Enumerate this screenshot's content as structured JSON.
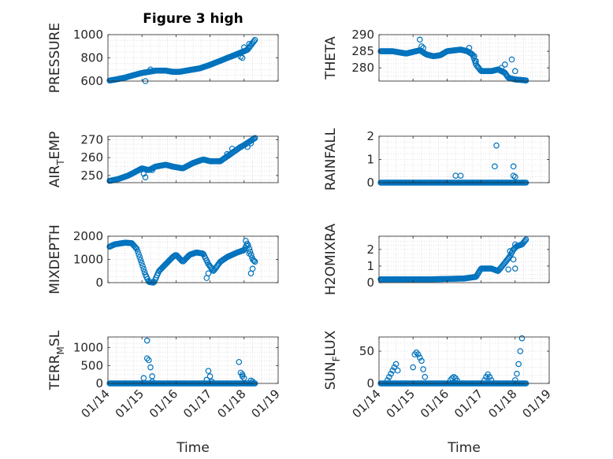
{
  "figure_title": "Figure 3 high",
  "time_axis": {
    "xlabel": "Time",
    "xlim": [
      14,
      19
    ],
    "ticks": [
      14,
      15,
      16,
      17,
      18,
      19
    ],
    "tick_labels": [
      "01/14",
      "01/15",
      "01/16",
      "01/17",
      "01/18",
      "01/19"
    ]
  },
  "colors": {
    "marker": "#0072BD",
    "grid": "#d9d9d9",
    "axis": "#262626"
  },
  "chart_data": [
    {
      "id": "pressure",
      "type": "scatter",
      "ylabel": "PRESSURE",
      "ylim": [
        600,
        1000
      ],
      "yticks": [
        600,
        800,
        1000
      ],
      "data_window": [
        14.0,
        18.35
      ],
      "x_range": [
        14.05,
        18.32
      ],
      "keypoints": [
        [
          14.05,
          605
        ],
        [
          14.2,
          612
        ],
        [
          14.5,
          630
        ],
        [
          14.8,
          655
        ],
        [
          15.0,
          670
        ],
        [
          15.2,
          680
        ],
        [
          15.4,
          690
        ],
        [
          15.7,
          690
        ],
        [
          15.9,
          680
        ],
        [
          16.1,
          680
        ],
        [
          16.4,
          695
        ],
        [
          16.7,
          710
        ],
        [
          17.0,
          740
        ],
        [
          17.3,
          775
        ],
        [
          17.6,
          810
        ],
        [
          17.9,
          845
        ],
        [
          18.1,
          870
        ],
        [
          18.32,
          955
        ]
      ],
      "outliers": [
        [
          15.1,
          600
        ],
        [
          15.25,
          700
        ],
        [
          17.9,
          810
        ],
        [
          17.95,
          800
        ],
        [
          18.0,
          890
        ],
        [
          18.15,
          920
        ]
      ]
    },
    {
      "id": "theta",
      "type": "scatter",
      "ylabel": "THETA",
      "ylim": [
        276,
        290
      ],
      "yticks": [
        280,
        285,
        290
      ],
      "data_window": [
        14.0,
        18.35
      ],
      "x_range": [
        14.05,
        18.32
      ],
      "keypoints": [
        [
          14.05,
          285
        ],
        [
          14.4,
          285
        ],
        [
          14.8,
          284.3
        ],
        [
          15.0,
          284.8
        ],
        [
          15.2,
          285.3
        ],
        [
          15.4,
          284
        ],
        [
          15.6,
          283.5
        ],
        [
          15.8,
          283.8
        ],
        [
          16.0,
          285
        ],
        [
          16.4,
          285.5
        ],
        [
          16.6,
          285
        ],
        [
          16.75,
          284
        ],
        [
          16.85,
          281
        ],
        [
          17.0,
          279
        ],
        [
          17.3,
          279
        ],
        [
          17.5,
          279.5
        ],
        [
          17.7,
          278.5
        ],
        [
          17.8,
          277
        ],
        [
          18.0,
          276.5
        ],
        [
          18.32,
          276.2
        ]
      ],
      "outliers": [
        [
          15.2,
          288.5
        ],
        [
          15.25,
          286.5
        ],
        [
          15.3,
          286
        ],
        [
          16.65,
          286
        ],
        [
          16.8,
          283.5
        ],
        [
          16.85,
          282
        ],
        [
          17.6,
          280
        ],
        [
          17.7,
          281
        ],
        [
          17.9,
          282.5
        ],
        [
          18.0,
          279
        ]
      ]
    },
    {
      "id": "air_temp",
      "type": "scatter",
      "ylabel": "AIR_TEMP",
      "ylabel_main": "AIR",
      "ylabel_sub": "T",
      "ylabel_tail": "EMP",
      "ylim": [
        246,
        272
      ],
      "yticks": [
        250,
        260,
        270
      ],
      "data_window": [
        14.0,
        18.35
      ],
      "x_range": [
        14.05,
        18.32
      ],
      "keypoints": [
        [
          14.05,
          247
        ],
        [
          14.3,
          248
        ],
        [
          14.6,
          250
        ],
        [
          14.8,
          252
        ],
        [
          15.0,
          254
        ],
        [
          15.2,
          253
        ],
        [
          15.4,
          255
        ],
        [
          15.7,
          256
        ],
        [
          15.9,
          255
        ],
        [
          16.2,
          254
        ],
        [
          16.5,
          257
        ],
        [
          16.8,
          259
        ],
        [
          17.0,
          258
        ],
        [
          17.3,
          258
        ],
        [
          17.6,
          262
        ],
        [
          17.9,
          266
        ],
        [
          18.0,
          267
        ],
        [
          18.32,
          271
        ]
      ],
      "outliers": [
        [
          15.05,
          251
        ],
        [
          15.1,
          249
        ],
        [
          15.3,
          253
        ],
        [
          17.5,
          262
        ],
        [
          17.65,
          265
        ],
        [
          18.1,
          266
        ],
        [
          18.2,
          268
        ]
      ]
    },
    {
      "id": "rainfall",
      "type": "scatter",
      "ylabel": "RAINFALL",
      "ylim": [
        0,
        2
      ],
      "yticks": [
        0,
        1,
        2
      ],
      "data_window": [
        14.0,
        18.35
      ],
      "x_range": [
        14.05,
        18.32
      ],
      "keypoints": [
        [
          14.05,
          0
        ],
        [
          18.32,
          0
        ]
      ],
      "outliers": [
        [
          16.25,
          0.3
        ],
        [
          16.4,
          0.3
        ],
        [
          17.4,
          0.7
        ],
        [
          17.45,
          1.6
        ],
        [
          17.95,
          0.7
        ],
        [
          17.95,
          0.3
        ],
        [
          18.0,
          0.25
        ]
      ]
    },
    {
      "id": "mixdepth",
      "type": "scatter",
      "ylabel": "MIXDEPTH",
      "ylim": [
        0,
        2000
      ],
      "yticks": [
        0,
        1000,
        2000
      ],
      "data_window": [
        14.0,
        18.35
      ],
      "x_range": [
        14.05,
        18.32
      ],
      "keypoints": [
        [
          14.05,
          1550
        ],
        [
          14.2,
          1650
        ],
        [
          14.5,
          1720
        ],
        [
          14.7,
          1700
        ],
        [
          14.85,
          1450
        ],
        [
          15.0,
          800
        ],
        [
          15.1,
          350
        ],
        [
          15.2,
          30
        ],
        [
          15.35,
          0
        ],
        [
          15.5,
          500
        ],
        [
          15.7,
          800
        ],
        [
          15.9,
          1100
        ],
        [
          16.0,
          1200
        ],
        [
          16.2,
          900
        ],
        [
          16.4,
          1200
        ],
        [
          16.6,
          1300
        ],
        [
          16.8,
          1250
        ],
        [
          16.95,
          800
        ],
        [
          17.1,
          500
        ],
        [
          17.3,
          900
        ],
        [
          17.5,
          1100
        ],
        [
          17.8,
          1300
        ],
        [
          18.0,
          1400
        ],
        [
          18.1,
          1700
        ],
        [
          18.25,
          1000
        ],
        [
          18.32,
          900
        ]
      ],
      "outliers": [
        [
          16.9,
          200
        ],
        [
          16.95,
          400
        ],
        [
          18.05,
          1800
        ],
        [
          18.15,
          1250
        ],
        [
          18.2,
          400
        ],
        [
          18.25,
          600
        ]
      ]
    },
    {
      "id": "h2omixra",
      "type": "scatter",
      "ylabel": "H2OMIXRA",
      "ylim": [
        0,
        2.8
      ],
      "yticks": [
        0,
        1,
        2
      ],
      "data_window": [
        14.0,
        18.35
      ],
      "x_range": [
        14.05,
        18.32
      ],
      "keypoints": [
        [
          14.05,
          0.2
        ],
        [
          15.5,
          0.2
        ],
        [
          16.5,
          0.25
        ],
        [
          16.85,
          0.35
        ],
        [
          17.0,
          0.85
        ],
        [
          17.3,
          0.85
        ],
        [
          17.5,
          0.7
        ],
        [
          17.7,
          1.2
        ],
        [
          17.85,
          1.6
        ],
        [
          17.95,
          2.0
        ],
        [
          18.05,
          2.2
        ],
        [
          18.2,
          2.3
        ],
        [
          18.32,
          2.6
        ]
      ],
      "outliers": [
        [
          17.8,
          0.8
        ],
        [
          17.85,
          1.9
        ],
        [
          17.95,
          1.4
        ],
        [
          18.0,
          0.85
        ],
        [
          18.0,
          2.3
        ]
      ]
    },
    {
      "id": "terr_msl",
      "type": "scatter",
      "ylabel": "TERR_MSL",
      "ylabel_main": "TERR",
      "ylabel_sub": "M",
      "ylabel_tail": "SL",
      "ylim": [
        0,
        1300
      ],
      "yticks": [
        0,
        500,
        1000
      ],
      "data_window": [
        14.0,
        18.35
      ],
      "x_range": [
        14.05,
        18.32
      ],
      "keypoints": [
        [
          14.05,
          0
        ],
        [
          18.32,
          0
        ]
      ],
      "outliers": [
        [
          15.05,
          150
        ],
        [
          15.15,
          1200
        ],
        [
          15.15,
          700
        ],
        [
          15.2,
          650
        ],
        [
          15.25,
          450
        ],
        [
          15.3,
          200
        ],
        [
          15.3,
          50
        ],
        [
          16.9,
          100
        ],
        [
          16.95,
          350
        ],
        [
          17.0,
          200
        ],
        [
          17.05,
          50
        ],
        [
          17.85,
          600
        ],
        [
          17.9,
          300
        ],
        [
          17.95,
          250
        ],
        [
          17.95,
          200
        ],
        [
          18.0,
          150
        ],
        [
          18.2,
          80
        ],
        [
          18.25,
          50
        ]
      ]
    },
    {
      "id": "sun_flux",
      "type": "scatter",
      "ylabel": "SUN_FLUX",
      "ylabel_main": "SUN",
      "ylabel_sub": "F",
      "ylabel_tail": "LUX",
      "ylim": [
        0,
        72
      ],
      "yticks": [
        0,
        50
      ],
      "data_window": [
        14.0,
        18.35
      ],
      "x_range": [
        14.05,
        18.32
      ],
      "keypoints": [
        [
          14.05,
          0
        ],
        [
          18.32,
          0
        ]
      ],
      "outliers": [
        [
          14.2,
          0
        ],
        [
          14.25,
          5
        ],
        [
          14.3,
          10
        ],
        [
          14.35,
          15
        ],
        [
          14.4,
          20
        ],
        [
          14.45,
          25
        ],
        [
          14.5,
          30
        ],
        [
          14.55,
          20
        ],
        [
          15.0,
          25
        ],
        [
          15.05,
          45
        ],
        [
          15.1,
          48
        ],
        [
          15.15,
          45
        ],
        [
          15.2,
          40
        ],
        [
          15.25,
          35
        ],
        [
          15.3,
          22
        ],
        [
          15.35,
          10
        ],
        [
          16.1,
          5
        ],
        [
          16.15,
          8
        ],
        [
          16.2,
          10
        ],
        [
          16.25,
          8
        ],
        [
          16.3,
          4
        ],
        [
          17.1,
          5
        ],
        [
          17.15,
          10
        ],
        [
          17.2,
          14
        ],
        [
          17.25,
          10
        ],
        [
          17.3,
          5
        ],
        [
          18.0,
          5
        ],
        [
          18.05,
          15
        ],
        [
          18.1,
          30
        ],
        [
          18.15,
          50
        ],
        [
          18.2,
          70
        ]
      ]
    }
  ]
}
